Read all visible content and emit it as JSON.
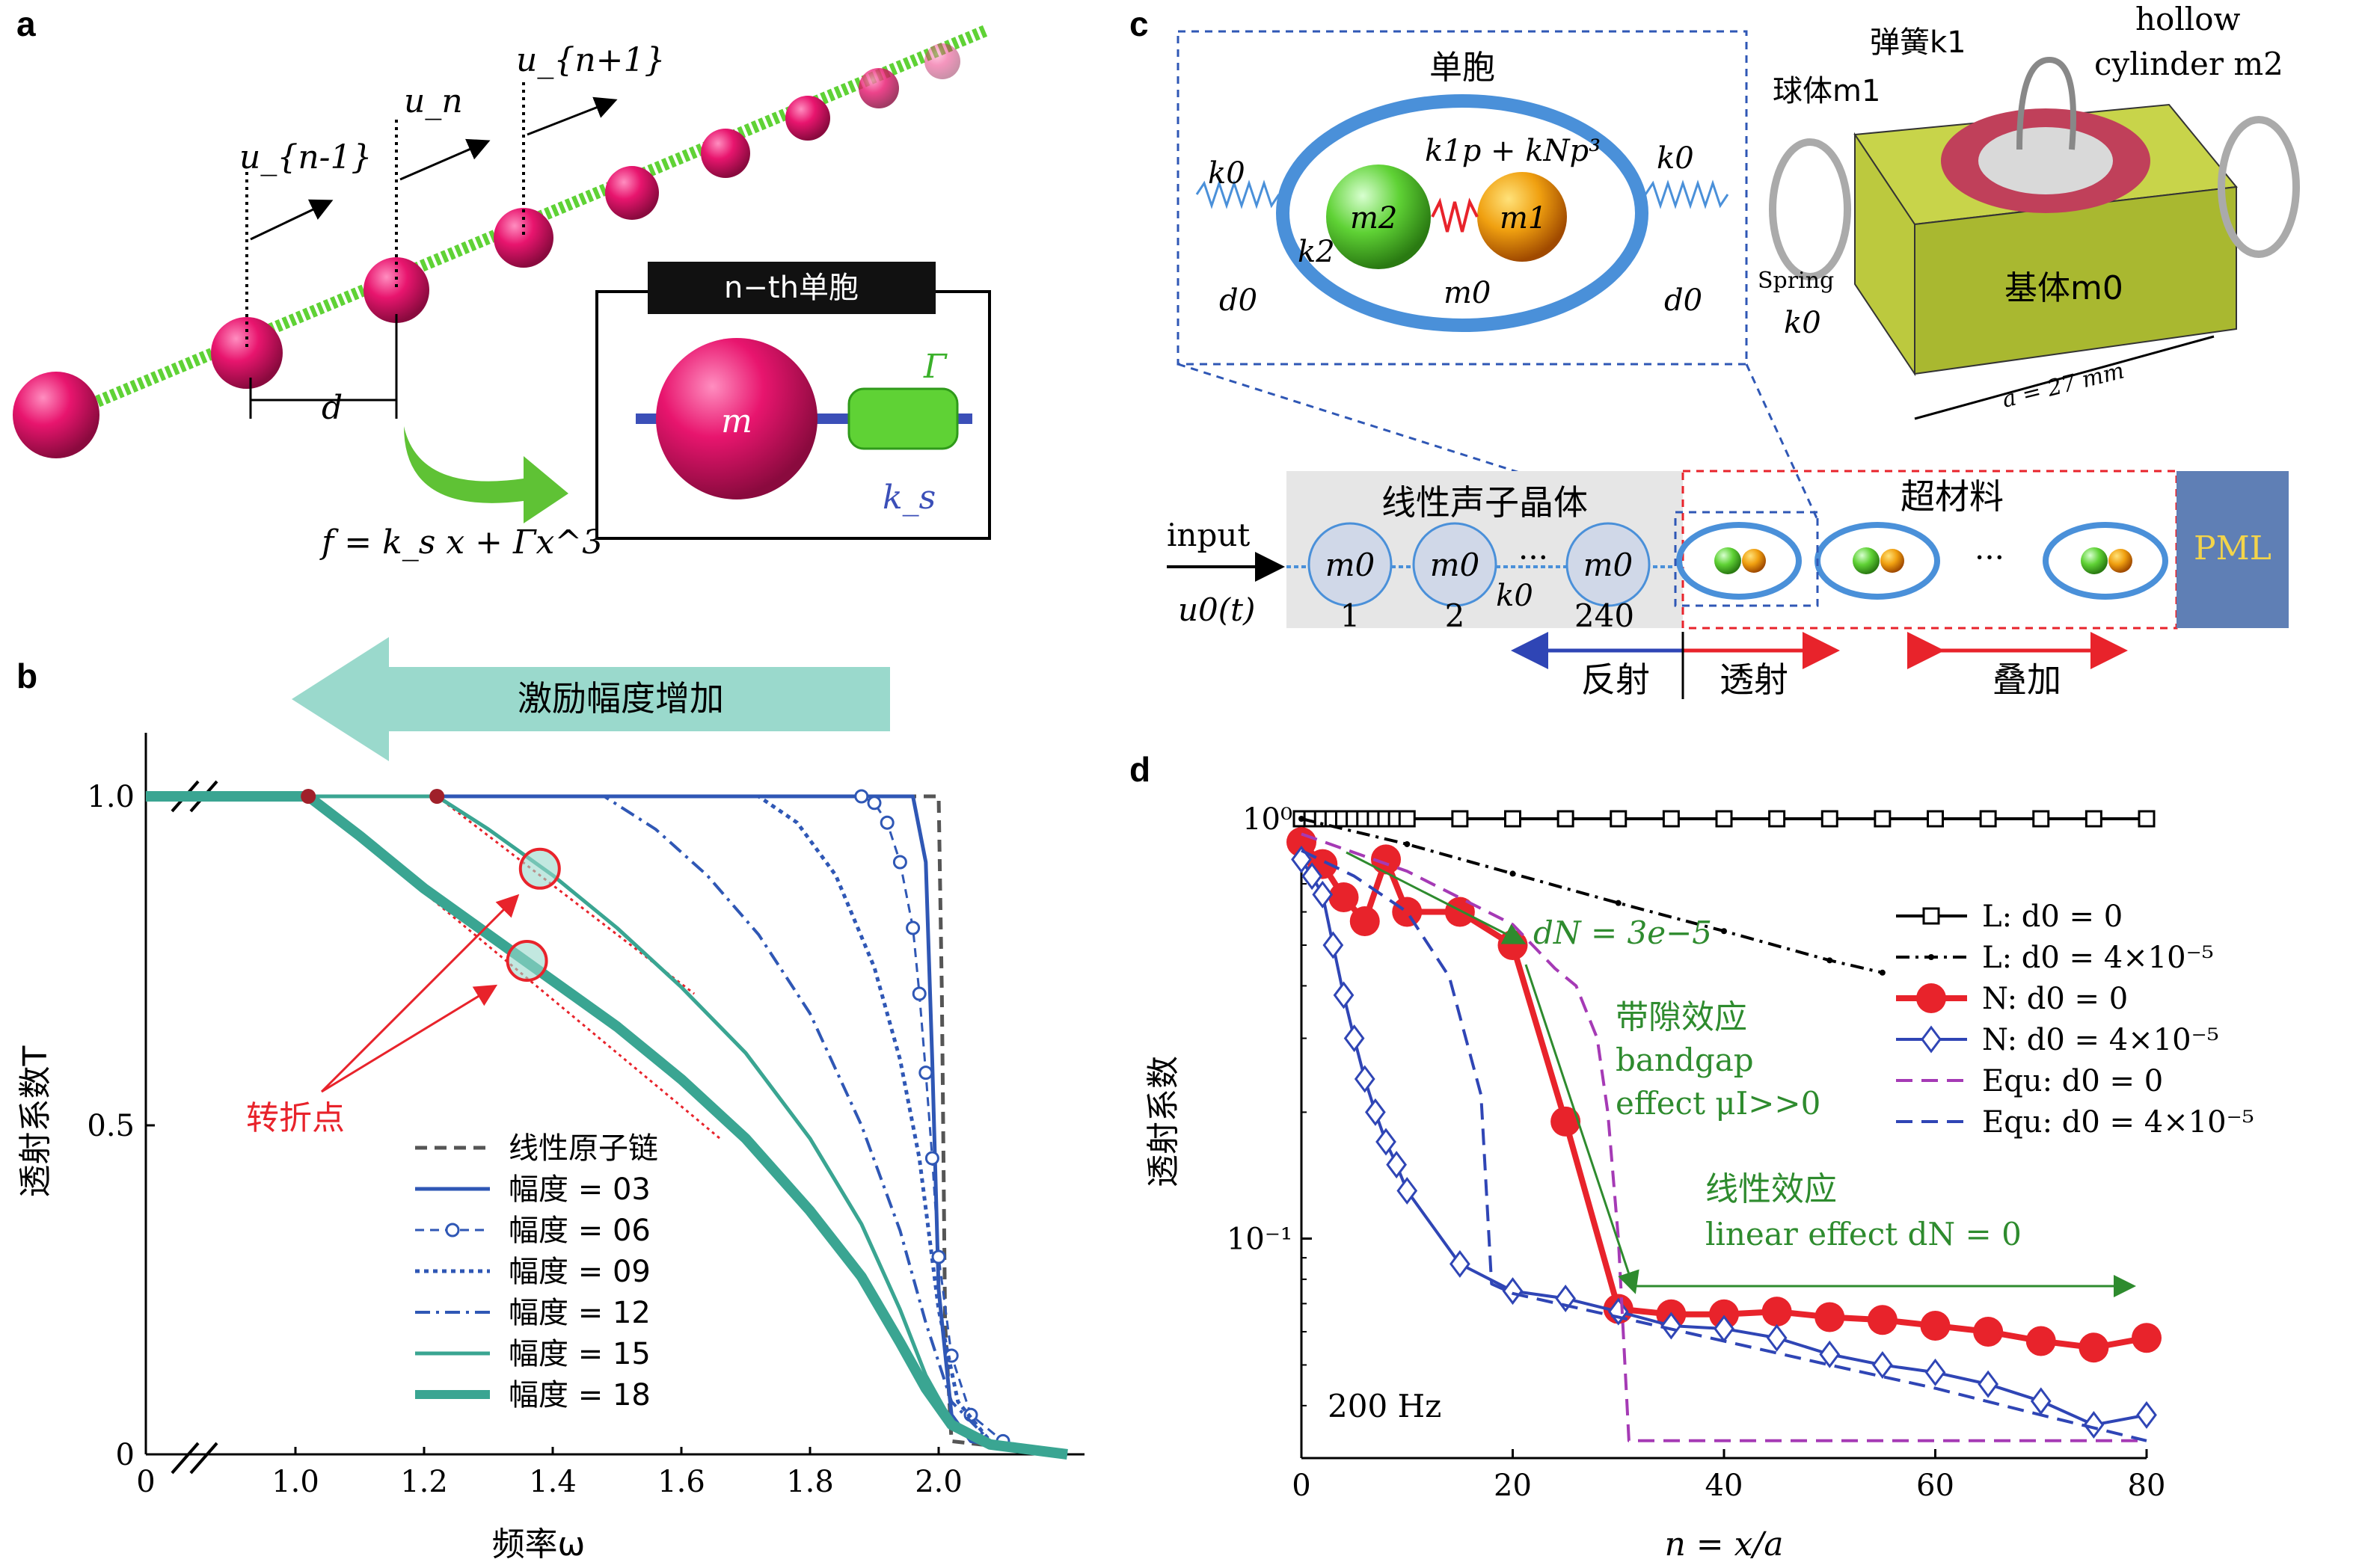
{
  "panels": {
    "a": {
      "label": "a",
      "displacements": [
        "u_{n-1}",
        "u_n",
        "u_{n+1}"
      ],
      "spacing_label": "d",
      "force_law": "f = k_s x + Γx^3",
      "cell_title": "n−th单胞",
      "cell_mass": "m",
      "cell_gamma": "Γ",
      "cell_ks": "k_s",
      "colors": {
        "sphere": "#e8156e",
        "spring": "#5fd235",
        "rod": "#3b4fb8"
      }
    },
    "b": {
      "label": "b",
      "arrow_text": "激励幅度增加",
      "turning_point_label": "转折点"
    },
    "c": {
      "label": "c",
      "unit_cell_title": "单胞",
      "labels": {
        "k0": "k0",
        "k2": "k2",
        "m2": "m2",
        "m1": "m1",
        "m0": "m0",
        "d0": "d0",
        "nonlinear": "k1p + kNp³"
      },
      "photo_labels": {
        "spring_k1": "弹簧k1",
        "ball": "球体m1",
        "hollow": "hollow",
        "cylinder": "cylinder m2",
        "spring": "Spring",
        "spring_k0": "k0",
        "base": "基体m0",
        "size": "a = 27 mm"
      },
      "chain": {
        "linear_title": "线性声子晶体",
        "meta_title": "超材料",
        "input": "input",
        "input_fn": "u0(t)",
        "nodes": [
          "m0",
          "m0",
          "m0"
        ],
        "node_indices": [
          "1",
          "2",
          "240"
        ],
        "ellipsis": "···",
        "k0": "k0",
        "pml": "PML",
        "reflect": "反射",
        "transmit": "透射",
        "superpose": "叠加"
      }
    },
    "d": {
      "label": "d",
      "freq_label": "200 Hz",
      "annotations": {
        "dN": "dN = 3e−5",
        "bandgap_cn": "带隙效应",
        "bandgap_en1": "bandgap",
        "bandgap_en2": "effect μI>>0",
        "linear_cn": "线性效应",
        "linear_en": "linear effect dN = 0"
      }
    }
  },
  "chart_data": [
    {
      "id": "b",
      "type": "line",
      "title": "",
      "xlabel": "频率ω",
      "ylabel": "透射系数T",
      "xlim": [
        0,
        2.2
      ],
      "ylim": [
        0,
        1.05
      ],
      "x_break": [
        0.05,
        1.0
      ],
      "xticks": [
        "0",
        "1.0",
        "1.2",
        "1.4",
        "1.6",
        "1.8",
        "2.0"
      ],
      "xtick_values": [
        0,
        1.0,
        1.2,
        1.4,
        1.6,
        1.8,
        2.0
      ],
      "yticks": [
        "0",
        "0.5",
        "1.0"
      ],
      "ytick_values": [
        0,
        0.5,
        1.0
      ],
      "legend_position": "bottom-center",
      "series": [
        {
          "name": "线性原子链",
          "style": "dashed",
          "color": "#555555",
          "width": 5,
          "x": [
            0.0,
            1.97,
            2.0,
            2.005,
            2.01,
            2.02,
            2.2
          ],
          "y": [
            1.0,
            1.0,
            1.0,
            0.7,
            0.2,
            0.02,
            0.0
          ]
        },
        {
          "name": "幅度 = 03",
          "style": "solid",
          "color": "#2f57b5",
          "width": 5,
          "x": [
            0.0,
            1.9,
            1.96,
            1.98,
            1.99,
            2.0,
            2.02,
            2.05,
            2.2
          ],
          "y": [
            1.0,
            1.0,
            1.0,
            0.9,
            0.6,
            0.25,
            0.06,
            0.02,
            0.0
          ]
        },
        {
          "name": "幅度 = 06",
          "style": "circles",
          "color": "#2f57b5",
          "width": 3,
          "x": [
            0.0,
            1.88,
            1.9,
            1.92,
            1.94,
            1.96,
            1.97,
            1.98,
            1.99,
            2.0,
            2.02,
            2.05,
            2.1,
            2.2
          ],
          "y": [
            1.0,
            1.0,
            0.99,
            0.96,
            0.9,
            0.8,
            0.7,
            0.58,
            0.45,
            0.3,
            0.15,
            0.06,
            0.02,
            0.0
          ]
        },
        {
          "name": "幅度 = 09",
          "style": "dotted",
          "color": "#2f57b5",
          "width": 5,
          "x": [
            0.0,
            1.72,
            1.78,
            1.84,
            1.9,
            1.94,
            1.97,
            2.0,
            2.03,
            2.08,
            2.2
          ],
          "y": [
            1.0,
            1.0,
            0.96,
            0.88,
            0.74,
            0.6,
            0.45,
            0.22,
            0.08,
            0.02,
            0.0
          ]
        },
        {
          "name": "幅度 = 12",
          "style": "dashdot",
          "color": "#2f57b5",
          "width": 4,
          "x": [
            0.0,
            1.48,
            1.56,
            1.64,
            1.72,
            1.8,
            1.88,
            1.94,
            1.98,
            2.02,
            2.08,
            2.2
          ],
          "y": [
            1.0,
            1.0,
            0.95,
            0.88,
            0.79,
            0.67,
            0.5,
            0.34,
            0.2,
            0.08,
            0.02,
            0.0
          ]
        },
        {
          "name": "幅度 = 15",
          "style": "solid",
          "color": "#3aa592",
          "width": 5,
          "x": [
            0.0,
            1.22,
            1.3,
            1.4,
            1.5,
            1.6,
            1.7,
            1.8,
            1.88,
            1.94,
            1.98,
            2.02,
            2.08,
            2.2
          ],
          "y": [
            1.0,
            1.0,
            0.95,
            0.88,
            0.8,
            0.71,
            0.61,
            0.48,
            0.35,
            0.22,
            0.12,
            0.05,
            0.015,
            0.0
          ]
        },
        {
          "name": "幅度 = 18",
          "style": "thick",
          "color": "#3aa592",
          "width": 14,
          "x": [
            0.0,
            1.02,
            1.1,
            1.2,
            1.3,
            1.4,
            1.5,
            1.6,
            1.7,
            1.8,
            1.88,
            1.94,
            1.98,
            2.02,
            2.08,
            2.2
          ],
          "y": [
            1.0,
            1.0,
            0.94,
            0.86,
            0.79,
            0.72,
            0.65,
            0.57,
            0.48,
            0.37,
            0.27,
            0.17,
            0.1,
            0.045,
            0.015,
            0.0
          ]
        }
      ],
      "turning_points": [
        {
          "x": 1.02,
          "y": 1.0
        },
        {
          "x": 1.22,
          "y": 1.0
        }
      ],
      "highlight_circles": [
        {
          "x": 1.38,
          "y": 0.89
        },
        {
          "x": 1.36,
          "y": 0.75
        }
      ],
      "tangent_lines": [
        {
          "x": [
            1.22,
            1.62
          ],
          "y": [
            1.0,
            0.7
          ]
        },
        {
          "x": [
            1.02,
            1.66
          ],
          "y": [
            1.0,
            0.48
          ]
        }
      ]
    },
    {
      "id": "d",
      "type": "line",
      "title": "",
      "xlabel": "n = x/a",
      "ylabel": "透射系数",
      "xlim": [
        0,
        80
      ],
      "ylim": [
        0.03,
        1.0
      ],
      "yscale": "log",
      "xticks": [
        "0",
        "20",
        "40",
        "60",
        "80"
      ],
      "xtick_values": [
        0,
        20,
        40,
        60,
        80
      ],
      "yticks": [
        "10⁰",
        "10⁻¹"
      ],
      "ytick_values": [
        1.0,
        0.1
      ],
      "legend_position": "top-right",
      "series": [
        {
          "name": "L: d0 = 0",
          "style": "solid-square",
          "color": "#000000",
          "x": [
            0,
            1,
            2,
            3,
            4,
            5,
            6,
            7,
            8,
            9,
            10,
            15,
            20,
            25,
            30,
            35,
            40,
            45,
            50,
            55,
            60,
            65,
            70,
            75,
            80
          ],
          "y": [
            1,
            1,
            1,
            1,
            1,
            1,
            1,
            1,
            1,
            1,
            1,
            1,
            1,
            1,
            1,
            1,
            1,
            1,
            1,
            1,
            1,
            1,
            1,
            1,
            1
          ]
        },
        {
          "name": "L: d0 = 4×10⁻⁵",
          "style": "dashdot-dot",
          "color": "#000000",
          "x": [
            0,
            10,
            20,
            30,
            40,
            50,
            55
          ],
          "y": [
            1.0,
            0.87,
            0.74,
            0.63,
            0.54,
            0.46,
            0.43
          ]
        },
        {
          "name": "N: d0 = 0",
          "style": "solid-circle",
          "color": "#e8232b",
          "x": [
            0,
            2,
            4,
            6,
            8,
            10,
            15,
            20,
            25,
            30,
            35,
            40,
            45,
            50,
            55,
            60,
            65,
            70,
            75,
            80
          ],
          "y": [
            0.88,
            0.78,
            0.65,
            0.57,
            0.8,
            0.6,
            0.6,
            0.5,
            0.19,
            0.068,
            0.066,
            0.066,
            0.067,
            0.065,
            0.064,
            0.062,
            0.06,
            0.057,
            0.055,
            0.058
          ]
        },
        {
          "name": "N: d0 = 4×10⁻⁵",
          "style": "solid-diamond",
          "color": "#2f45b5",
          "x": [
            0,
            1,
            2,
            3,
            4,
            5,
            6,
            7,
            8,
            9,
            10,
            15,
            20,
            25,
            30,
            35,
            40,
            45,
            50,
            55,
            60,
            65,
            70,
            75,
            80
          ],
          "y": [
            0.8,
            0.73,
            0.66,
            0.5,
            0.38,
            0.3,
            0.24,
            0.2,
            0.17,
            0.15,
            0.13,
            0.087,
            0.075,
            0.072,
            0.067,
            0.062,
            0.061,
            0.058,
            0.053,
            0.05,
            0.048,
            0.045,
            0.041,
            0.036,
            0.038
          ]
        },
        {
          "name": "Equ: d0 = 0",
          "style": "dashed",
          "color": "#a53ab5",
          "x": [
            0,
            10,
            20,
            24,
            26,
            28,
            29,
            30,
            31,
            80
          ],
          "y": [
            0.92,
            0.75,
            0.56,
            0.44,
            0.4,
            0.3,
            0.2,
            0.1,
            0.033,
            0.033
          ]
        },
        {
          "name": "Equ: d0 = 4×10⁻⁵",
          "style": "dashed",
          "color": "#2f45b5",
          "x": [
            0,
            5,
            10,
            14,
            17,
            18,
            20,
            30,
            40,
            50,
            60,
            70,
            80
          ],
          "y": [
            0.84,
            0.73,
            0.6,
            0.42,
            0.22,
            0.078,
            0.074,
            0.065,
            0.057,
            0.05,
            0.044,
            0.038,
            0.033
          ]
        }
      ]
    }
  ]
}
